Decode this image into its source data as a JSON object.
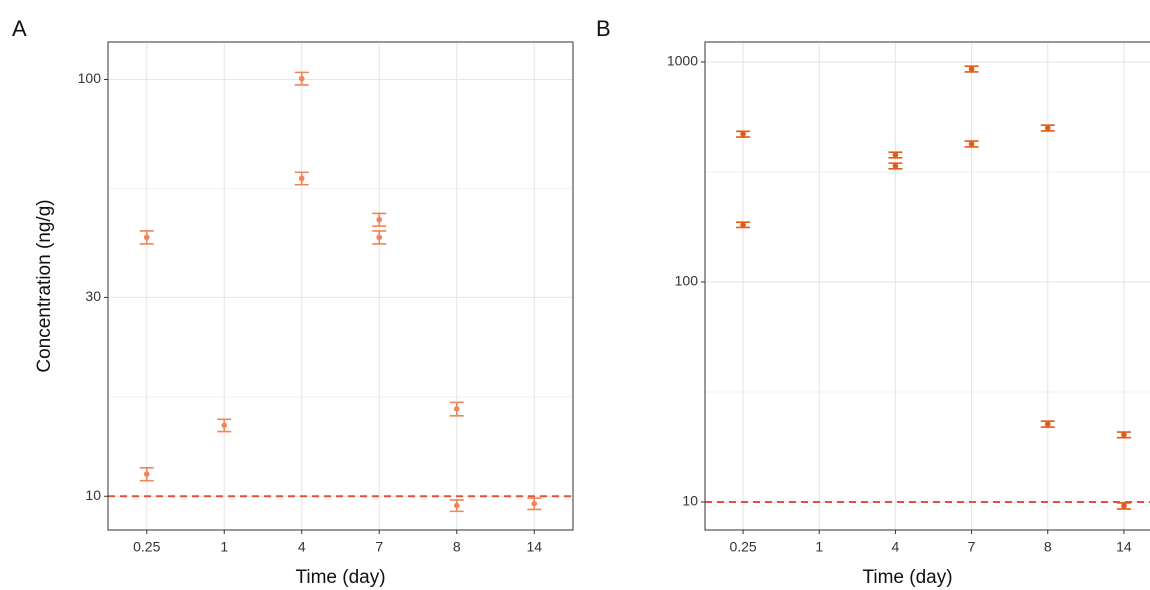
{
  "chart_data": [
    {
      "type": "errorpoint",
      "tag": "A",
      "y_label": "Concentration (ng/g)",
      "x_label": "Time (day)",
      "categories": [
        "0.25",
        "1",
        "4",
        "7",
        "8",
        "14"
      ],
      "log_y": true,
      "ylim": [
        8.3,
        123
      ],
      "yticks": [
        10,
        30,
        100
      ],
      "grid": true,
      "hline": 10,
      "hline_color": "#e0533d",
      "series": [
        {
          "color": "#f0845a",
          "values": [
            41.8,
            14.8,
            100.5,
            46.1,
            16.2,
            9.6
          ],
          "lower": [
            40.3,
            14.3,
            97,
            44.5,
            15.6,
            9.3
          ],
          "upper": [
            43.3,
            15.3,
            104,
            47.7,
            16.8,
            9.9
          ]
        },
        {
          "color": "#f0845a",
          "values": [
            11.3,
            null,
            57.9,
            41.8,
            9.5,
            null
          ],
          "lower": [
            10.9,
            null,
            55.9,
            40.3,
            9.2,
            null
          ],
          "upper": [
            11.7,
            null,
            59.9,
            43.3,
            9.8,
            null
          ]
        }
      ]
    },
    {
      "type": "errorpoint",
      "tag": "B",
      "x_label": "Time (day)",
      "categories": [
        "0.25",
        "1",
        "4",
        "7",
        "8",
        "14"
      ],
      "log_y": true,
      "ylim": [
        7.46,
        1233
      ],
      "yticks": [
        10,
        100,
        1000
      ],
      "grid": true,
      "hline": 10,
      "hline_color": "#e0533d",
      "series": [
        {
          "color": "#e35b17",
          "values": [
            470,
            null,
            378,
            929,
            501,
            20.2
          ],
          "lower": [
            456,
            null,
            367,
            901,
            486,
            19.6
          ],
          "upper": [
            484,
            null,
            389,
            957,
            516,
            20.8
          ]
        },
        {
          "color": "#e35b17",
          "values": [
            182,
            null,
            337,
            424,
            22.6,
            9.6
          ],
          "lower": [
            177,
            null,
            327,
            411,
            21.9,
            9.3
          ],
          "upper": [
            187,
            null,
            347,
            437,
            23.3,
            9.9
          ]
        }
      ]
    }
  ]
}
